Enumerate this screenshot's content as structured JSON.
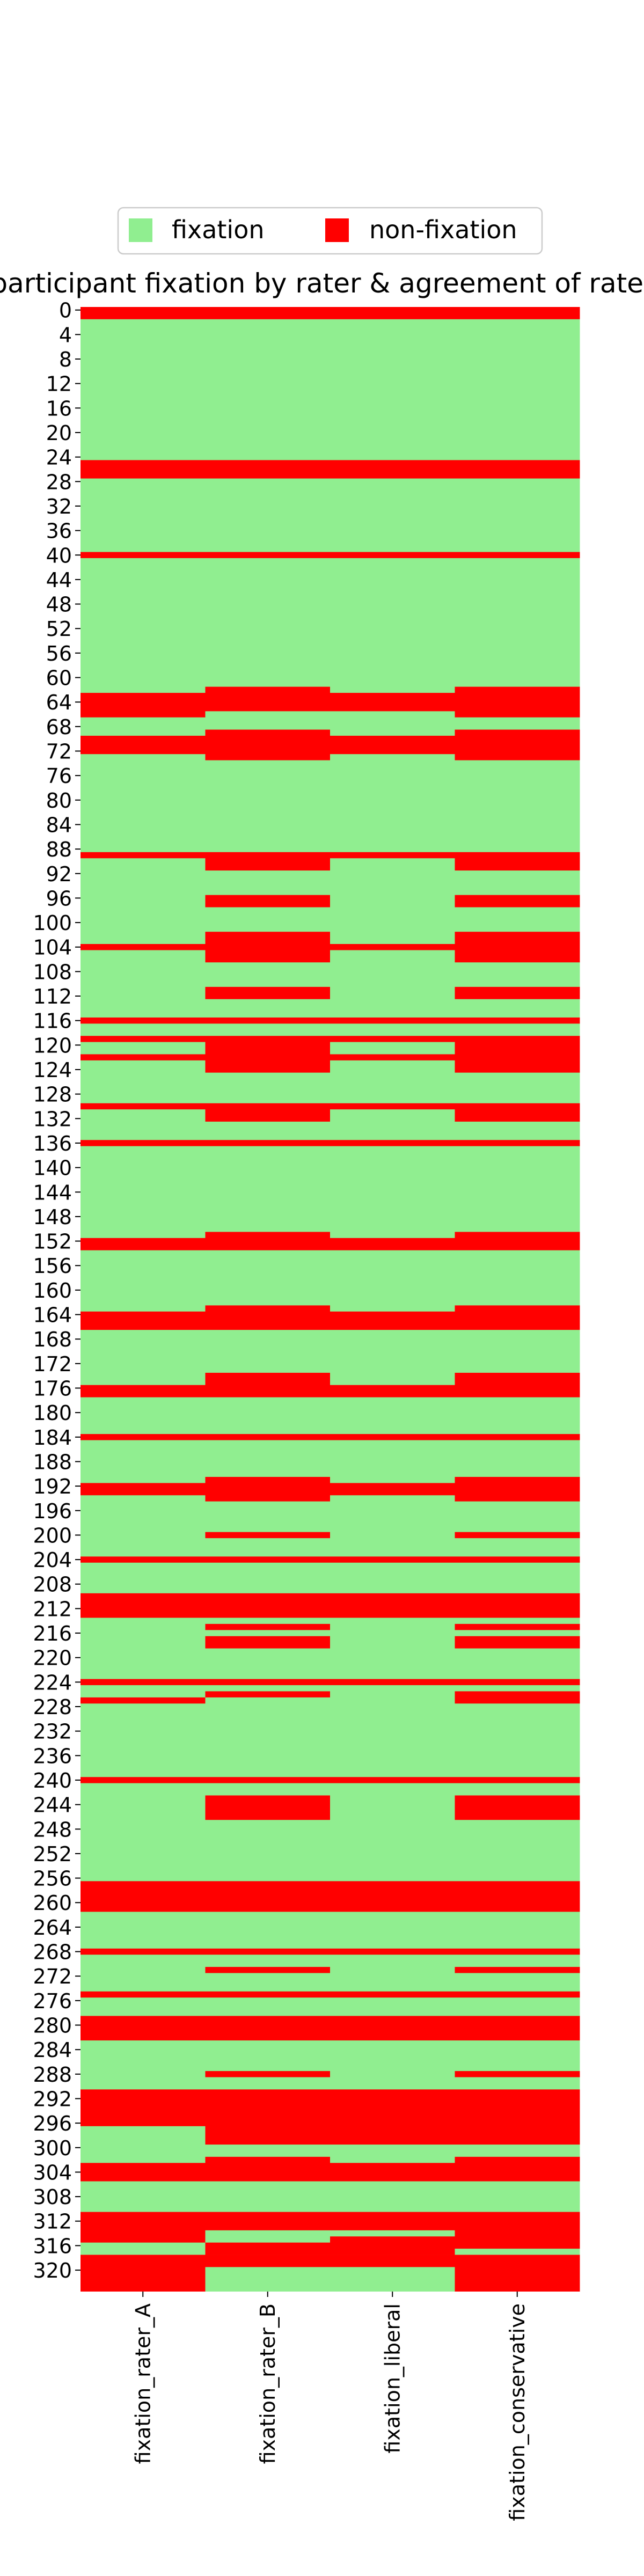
{
  "chart_data": {
    "type": "heatmap",
    "title": "participant fixation by rater & agreement of raters",
    "legend": {
      "placement": "top-center",
      "entries": [
        {
          "label": "fixation",
          "color": "#90ee90"
        },
        {
          "label": "non-fixation",
          "color": "#ff0000"
        }
      ]
    },
    "x_categories": [
      "fixation_rater_A",
      "fixation_rater_B",
      "fixation_liberal",
      "fixation_conservative"
    ],
    "y_range": [
      0,
      323
    ],
    "y_tick_step": 4,
    "y_ticks": [
      0,
      4,
      8,
      12,
      16,
      20,
      24,
      28,
      32,
      36,
      40,
      44,
      48,
      52,
      56,
      60,
      64,
      68,
      72,
      76,
      80,
      84,
      88,
      92,
      96,
      100,
      104,
      108,
      112,
      116,
      120,
      124,
      128,
      132,
      136,
      140,
      144,
      148,
      152,
      156,
      160,
      164,
      168,
      172,
      176,
      180,
      184,
      188,
      192,
      196,
      200,
      204,
      208,
      212,
      216,
      220,
      224,
      228,
      232,
      236,
      240,
      244,
      248,
      252,
      256,
      260,
      264,
      268,
      272,
      276,
      280,
      284,
      288,
      292,
      296,
      300,
      304,
      308,
      312,
      316,
      320
    ],
    "colors": {
      "fixation": "#90ee90",
      "non_fixation": "#ff0000"
    },
    "non_fixation_rows": {
      "fixation_rater_A": [
        [
          0,
          1
        ],
        [
          25,
          27
        ],
        [
          40,
          40
        ],
        [
          63,
          66
        ],
        [
          70,
          72
        ],
        [
          89,
          89
        ],
        [
          104,
          104
        ],
        [
          116,
          116
        ],
        [
          119,
          119
        ],
        [
          122,
          122
        ],
        [
          130,
          130
        ],
        [
          136,
          136
        ],
        [
          152,
          153
        ],
        [
          164,
          166
        ],
        [
          176,
          177
        ],
        [
          184,
          184
        ],
        [
          192,
          193
        ],
        [
          204,
          204
        ],
        [
          210,
          213
        ],
        [
          224,
          224
        ],
        [
          227,
          227
        ],
        [
          240,
          240
        ],
        [
          257,
          261
        ],
        [
          268,
          268
        ],
        [
          275,
          275
        ],
        [
          279,
          282
        ],
        [
          291,
          296
        ],
        [
          303,
          305
        ],
        [
          311,
          315
        ],
        [
          318,
          323
        ]
      ],
      "fixation_rater_B": [
        [
          0,
          1
        ],
        [
          25,
          27
        ],
        [
          40,
          40
        ],
        [
          62,
          65
        ],
        [
          69,
          73
        ],
        [
          89,
          91
        ],
        [
          96,
          97
        ],
        [
          102,
          106
        ],
        [
          111,
          112
        ],
        [
          116,
          116
        ],
        [
          119,
          124
        ],
        [
          130,
          132
        ],
        [
          136,
          136
        ],
        [
          151,
          153
        ],
        [
          163,
          166
        ],
        [
          174,
          177
        ],
        [
          184,
          184
        ],
        [
          191,
          194
        ],
        [
          200,
          200
        ],
        [
          204,
          204
        ],
        [
          210,
          213
        ],
        [
          215,
          215
        ],
        [
          217,
          218
        ],
        [
          224,
          224
        ],
        [
          226,
          226
        ],
        [
          240,
          240
        ],
        [
          243,
          246
        ],
        [
          257,
          261
        ],
        [
          268,
          268
        ],
        [
          271,
          271
        ],
        [
          275,
          275
        ],
        [
          279,
          282
        ],
        [
          288,
          288
        ],
        [
          291,
          299
        ],
        [
          302,
          305
        ],
        [
          311,
          313
        ],
        [
          316,
          317
        ],
        [
          318,
          319
        ]
      ],
      "fixation_liberal": [
        [
          0,
          1
        ],
        [
          25,
          27
        ],
        [
          40,
          40
        ],
        [
          63,
          65
        ],
        [
          70,
          72
        ],
        [
          89,
          89
        ],
        [
          104,
          104
        ],
        [
          116,
          116
        ],
        [
          119,
          119
        ],
        [
          122,
          122
        ],
        [
          130,
          130
        ],
        [
          136,
          136
        ],
        [
          152,
          153
        ],
        [
          164,
          166
        ],
        [
          176,
          177
        ],
        [
          184,
          184
        ],
        [
          192,
          193
        ],
        [
          204,
          204
        ],
        [
          210,
          213
        ],
        [
          224,
          224
        ],
        [
          240,
          240
        ],
        [
          257,
          261
        ],
        [
          268,
          268
        ],
        [
          275,
          275
        ],
        [
          279,
          282
        ],
        [
          291,
          299
        ],
        [
          303,
          305
        ],
        [
          311,
          313
        ],
        [
          315,
          317
        ],
        [
          318,
          319
        ]
      ],
      "fixation_conservative": [
        [
          0,
          1
        ],
        [
          25,
          27
        ],
        [
          40,
          40
        ],
        [
          62,
          66
        ],
        [
          69,
          73
        ],
        [
          89,
          91
        ],
        [
          96,
          97
        ],
        [
          102,
          106
        ],
        [
          111,
          112
        ],
        [
          116,
          116
        ],
        [
          119,
          124
        ],
        [
          130,
          132
        ],
        [
          136,
          136
        ],
        [
          151,
          153
        ],
        [
          163,
          166
        ],
        [
          174,
          177
        ],
        [
          184,
          184
        ],
        [
          191,
          194
        ],
        [
          200,
          200
        ],
        [
          204,
          204
        ],
        [
          210,
          213
        ],
        [
          215,
          215
        ],
        [
          217,
          218
        ],
        [
          224,
          224
        ],
        [
          226,
          227
        ],
        [
          240,
          240
        ],
        [
          243,
          246
        ],
        [
          257,
          261
        ],
        [
          268,
          268
        ],
        [
          271,
          271
        ],
        [
          275,
          275
        ],
        [
          279,
          282
        ],
        [
          288,
          288
        ],
        [
          291,
          299
        ],
        [
          302,
          305
        ],
        [
          311,
          316
        ],
        [
          318,
          323
        ]
      ]
    }
  }
}
